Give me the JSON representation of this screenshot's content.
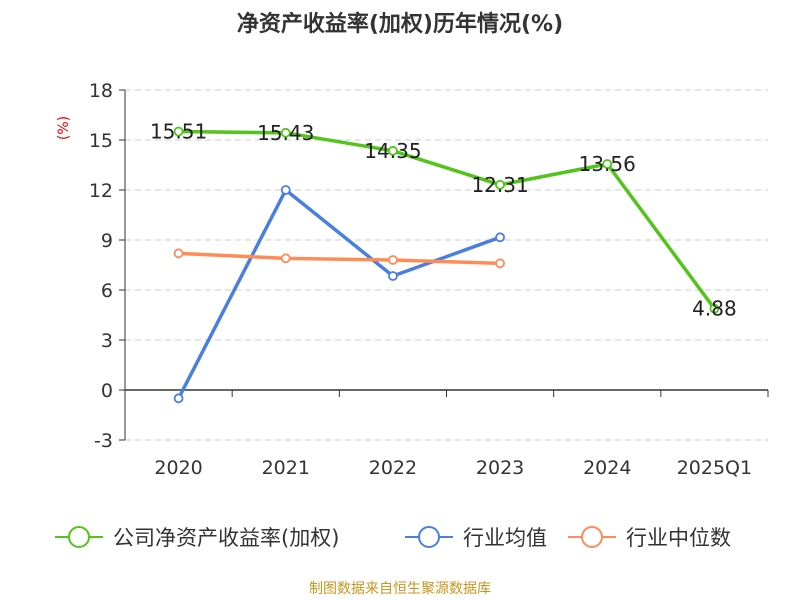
{
  "chart_data": {
    "type": "line",
    "title": "净资产收益率(加权)历年情况(%)",
    "ylabel": "(%)",
    "xlabel": "",
    "ylim": [
      -3,
      18
    ],
    "yticks": [
      -3,
      0,
      3,
      6,
      9,
      12,
      15,
      18
    ],
    "grid": true,
    "legend_position": "bottom",
    "categories": [
      "2020",
      "2021",
      "2022",
      "2023",
      "2024",
      "2025Q1"
    ],
    "series": [
      {
        "name": "公司净资产收益率(加权)",
        "color": "#52c41a",
        "values": [
          15.51,
          15.43,
          14.35,
          12.31,
          13.56,
          4.88
        ],
        "labels": [
          "15.51",
          "15.43",
          "14.35",
          "12.31",
          "13.56",
          "4.88"
        ]
      },
      {
        "name": "行业均值",
        "color": "#4a7fe0",
        "values": [
          -0.5,
          12.0,
          6.84,
          9.16,
          null,
          null
        ]
      },
      {
        "name": "行业中位数",
        "color": "#ff8c55",
        "values": [
          8.2,
          7.9,
          7.8,
          7.6,
          null,
          null
        ]
      }
    ]
  },
  "source": "制图数据来自恒生聚源数据库"
}
